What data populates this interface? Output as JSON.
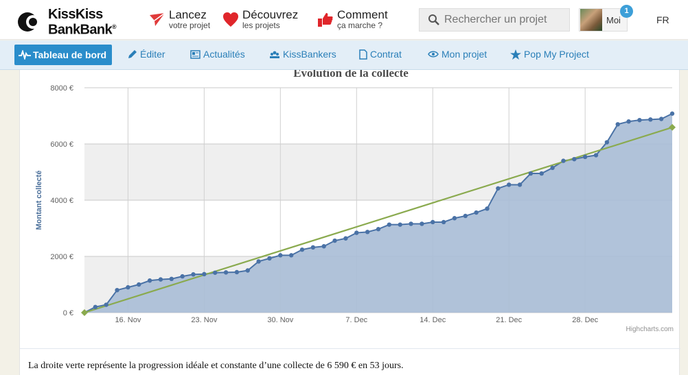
{
  "header": {
    "logo": {
      "line1": "KissKiss",
      "line2": "BankBank",
      "reg": "®"
    },
    "nav": [
      {
        "title": "Lancez",
        "subtitle": "votre projet",
        "icon": "paper-plane-icon"
      },
      {
        "title": "Découvrez",
        "subtitle": "les projets",
        "icon": "heart-icon"
      },
      {
        "title": "Comment",
        "subtitle": "ça marche ?",
        "icon": "thumbs-up-icon"
      }
    ],
    "search": {
      "placeholder": "Rechercher un projet",
      "icon": "search-icon"
    },
    "user": {
      "label": "Moi",
      "notifications": "1"
    },
    "language": "FR"
  },
  "subnav": {
    "items": [
      {
        "label": "Tableau de bord",
        "icon": "pulse-icon",
        "active": true
      },
      {
        "label": "Éditer",
        "icon": "pencil-icon"
      },
      {
        "label": "Actualités",
        "icon": "newspaper-icon"
      },
      {
        "label": "KissBankers",
        "icon": "people-icon"
      },
      {
        "label": "Contrat",
        "icon": "document-icon"
      },
      {
        "label": "Mon projet",
        "icon": "eye-icon"
      },
      {
        "label": "Pop My Project",
        "icon": "star-icon"
      }
    ]
  },
  "colors": {
    "area": "#a9bcd6",
    "series": "#4a72a6",
    "ideal": "#8aaa4e",
    "brand_blue": "#2a8dcb"
  },
  "chart_data": {
    "type": "line",
    "title": "Évolution de la collecte",
    "ylabel": "Montant collecté",
    "ylim": [
      0,
      8000
    ],
    "yticks": [
      "0 €",
      "2000 €",
      "4000 €",
      "6000 €",
      "8000 €"
    ],
    "xticks": [
      "16. Nov",
      "23. Nov",
      "30. Nov",
      "7. Dec",
      "14. Dec",
      "21. Dec",
      "28. Dec"
    ],
    "credit": "Highcharts.com",
    "series": [
      {
        "values": [
          0,
          200,
          280,
          800,
          900,
          1000,
          1140,
          1180,
          1200,
          1290,
          1360,
          1370,
          1420,
          1430,
          1440,
          1500,
          1820,
          1930,
          2040,
          2040,
          2240,
          2320,
          2360,
          2560,
          2640,
          2840,
          2870,
          2970,
          3130,
          3130,
          3160,
          3160,
          3220,
          3220,
          3360,
          3440,
          3560,
          3700,
          4420,
          4550,
          4550,
          4950,
          4950,
          5150,
          5400,
          5460,
          5540,
          5600,
          6060,
          6700,
          6800,
          6850,
          6870,
          6890,
          7080
        ]
      },
      {
        "values": [
          0,
          6590
        ]
      }
    ]
  },
  "footer": {
    "caption": "La droite verte représente la progression idéale et constante d’une collecte de 6 590 € en 53 jours."
  }
}
